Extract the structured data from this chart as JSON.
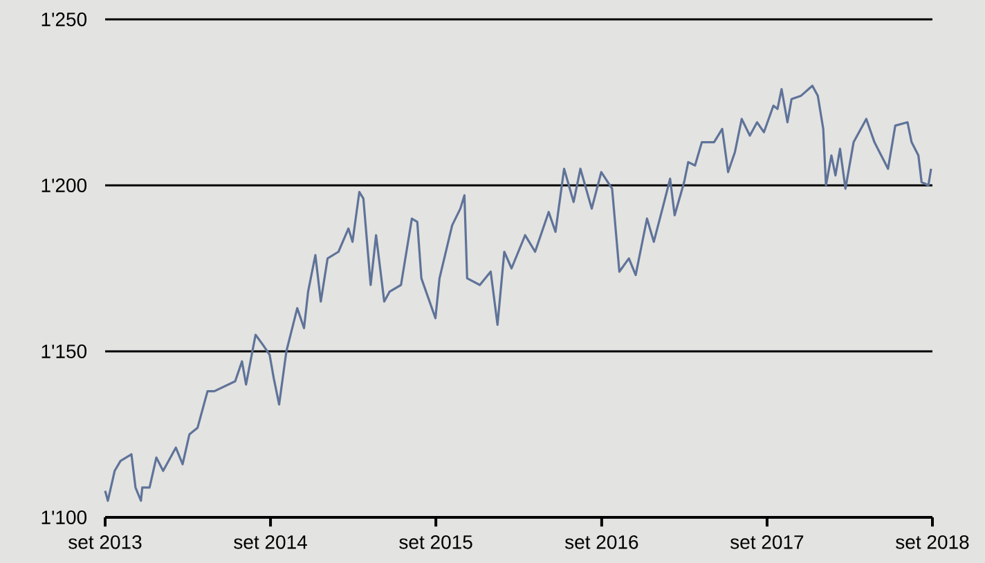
{
  "chart_data": {
    "type": "line",
    "color": "#5f7399",
    "x": [
      "2013-09-01",
      "2013-09-07",
      "2013-09-22",
      "2013-10-05",
      "2013-10-29",
      "2013-11-07",
      "2013-11-19",
      "2013-11-22",
      "2013-12-08",
      "2013-12-23",
      "2014-01-07",
      "2014-02-04",
      "2014-02-19",
      "2014-03-06",
      "2014-03-24",
      "2014-04-15",
      "2014-04-30",
      "2014-06-15",
      "2014-06-30",
      "2014-07-09",
      "2014-07-30",
      "2014-08-15",
      "2014-08-30",
      "2014-09-08",
      "2014-09-20",
      "2014-10-06",
      "2014-10-30",
      "2014-11-14",
      "2014-11-23",
      "2014-12-09",
      "2014-12-21",
      "2015-01-05",
      "2015-01-29",
      "2015-02-20",
      "2015-03-01",
      "2015-03-16",
      "2015-03-25",
      "2015-04-10",
      "2015-04-22",
      "2015-05-10",
      "2015-05-22",
      "2015-06-16",
      "2015-07-10",
      "2015-07-22",
      "2015-07-31",
      "2015-08-31",
      "2015-09-09",
      "2015-10-07",
      "2015-10-25",
      "2015-11-03",
      "2015-11-09",
      "2015-12-07",
      "2015-12-31",
      "2016-01-15",
      "2016-01-30",
      "2016-02-15",
      "2016-03-16",
      "2016-04-07",
      "2016-05-07",
      "2016-05-22",
      "2016-06-10",
      "2016-07-01",
      "2016-07-16",
      "2016-08-10",
      "2016-08-31",
      "2016-09-24",
      "2016-10-10",
      "2016-10-31",
      "2016-11-15",
      "2016-12-10",
      "2016-12-25",
      "2017-01-15",
      "2017-01-30",
      "2017-02-09",
      "2017-03-02",
      "2017-03-11",
      "2017-03-26",
      "2017-04-10",
      "2017-05-07",
      "2017-05-25",
      "2017-06-07",
      "2017-06-22",
      "2017-07-07",
      "2017-07-25",
      "2017-08-10",
      "2017-08-25",
      "2017-09-15",
      "2017-09-24",
      "2017-10-03",
      "2017-10-16",
      "2017-10-25",
      "2017-11-15",
      "2017-12-10",
      "2017-12-22",
      "2018-01-03",
      "2018-01-09",
      "2018-01-21",
      "2018-01-30",
      "2018-02-09",
      "2018-02-21",
      "2018-03-11",
      "2018-04-08",
      "2018-04-26",
      "2018-05-11",
      "2018-05-26",
      "2018-06-11",
      "2018-07-08",
      "2018-07-17",
      "2018-08-01",
      "2018-08-08",
      "2018-08-23",
      "2018-08-29"
    ],
    "values": [
      1108,
      1105,
      1114,
      1117,
      1119,
      1109,
      1105,
      1109,
      1109,
      1118,
      1114,
      1121,
      1116,
      1125,
      1127,
      1138,
      1138,
      1141,
      1147,
      1140,
      1155,
      1152,
      1149,
      1142,
      1134,
      1150,
      1163,
      1157,
      1168,
      1179,
      1165,
      1178,
      1180,
      1187,
      1183,
      1198,
      1196,
      1170,
      1185,
      1165,
      1168,
      1170,
      1190,
      1189,
      1172,
      1160,
      1172,
      1188,
      1193,
      1197,
      1172,
      1170,
      1174,
      1158,
      1180,
      1175,
      1185,
      1180,
      1192,
      1186,
      1205,
      1195,
      1205,
      1193,
      1204,
      1199,
      1174,
      1178,
      1173,
      1190,
      1183,
      1194,
      1202,
      1191,
      1201,
      1207,
      1206,
      1213,
      1213,
      1217,
      1204,
      1210,
      1220,
      1215,
      1219,
      1216,
      1224,
      1223,
      1229,
      1219,
      1226,
      1227,
      1230,
      1227,
      1217,
      1200,
      1209,
      1203,
      1211,
      1199,
      1213,
      1220,
      1213,
      1209,
      1205,
      1218,
      1219,
      1213,
      1209,
      1201,
      1200,
      1205
    ],
    "xlim": [
      "2013-09-01",
      "2018-09-01"
    ],
    "xticks": [
      {
        "value": "2013-09-01",
        "label": "set 2013"
      },
      {
        "value": "2014-09-01",
        "label": "set 2014"
      },
      {
        "value": "2015-09-01",
        "label": "set 2015"
      },
      {
        "value": "2016-09-01",
        "label": "set 2016"
      },
      {
        "value": "2017-09-01",
        "label": "set 2017"
      },
      {
        "value": "2018-09-01",
        "label": "set 2018"
      }
    ],
    "ylim": [
      1100,
      1250
    ],
    "yticks": [
      {
        "value": 1100,
        "label": "1'100"
      },
      {
        "value": 1150,
        "label": "1'150"
      },
      {
        "value": 1200,
        "label": "1'200"
      },
      {
        "value": 1250,
        "label": "1'250"
      }
    ],
    "grid": "y",
    "marker": "none",
    "line_style": "solid"
  }
}
